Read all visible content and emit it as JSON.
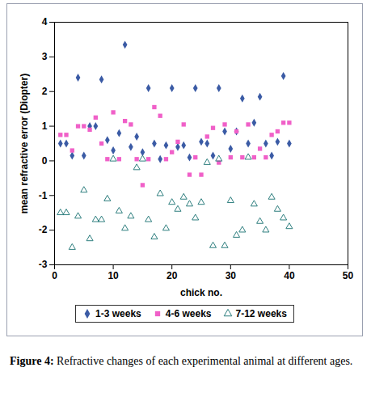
{
  "chart_data": {
    "type": "scatter",
    "title": "Figure 4: Refractive changes of each experimental animal at different ages.",
    "x_label": "chick no.",
    "y_label": "mean refractive error (Diopter)",
    "x": [
      1,
      2,
      3,
      4,
      5,
      6,
      7,
      8,
      9,
      10,
      11,
      12,
      13,
      14,
      15,
      16,
      17,
      18,
      19,
      20,
      21,
      22,
      23,
      24,
      25,
      26,
      27,
      28,
      29,
      30,
      31,
      32,
      33,
      34,
      35,
      36,
      37,
      38,
      39,
      40
    ],
    "series": [
      {
        "name": "1-3 weeks",
        "color": "#3b5ba5",
        "marker": "diamond",
        "values": [
          0.5,
          0.5,
          0.15,
          2.4,
          0.15,
          1.0,
          1.0,
          2.35,
          0.6,
          0.3,
          0.8,
          3.35,
          0.4,
          0.7,
          0.25,
          2.1,
          0.5,
          0.05,
          0.45,
          2.1,
          0.4,
          0.45,
          0.1,
          2.1,
          0.55,
          0.5,
          0.15,
          2.1,
          0.85,
          0.35,
          0.85,
          1.8,
          0.5,
          1.1,
          1.85,
          0.5,
          0.15,
          0.55,
          2.45,
          0.5
        ]
      },
      {
        "name": "4-6 weeks",
        "color": "#f060c8",
        "marker": "square",
        "values": [
          0.75,
          0.75,
          0.3,
          1.0,
          1.0,
          0.9,
          1.25,
          0.5,
          0.05,
          1.4,
          0.05,
          1.15,
          1.05,
          0.05,
          -0.7,
          0.05,
          1.55,
          1.3,
          0.05,
          0.25,
          0.55,
          1.05,
          -0.4,
          0.1,
          -0.4,
          0.7,
          0.95,
          -0.05,
          1.05,
          0.1,
          0.85,
          0.1,
          1.05,
          0.1,
          0.35,
          0.1,
          0.75,
          0.85,
          1.1,
          1.1
        ]
      },
      {
        "name": "7-12 weeks",
        "color": "#2f7f7f",
        "marker": "triangle-open",
        "values": [
          -1.5,
          -1.5,
          -2.5,
          -1.6,
          -0.85,
          -2.25,
          -1.7,
          -1.7,
          -1.1,
          0.05,
          -1.45,
          -1.95,
          -1.6,
          -0.2,
          0.05,
          -1.7,
          -2.2,
          -0.95,
          -1.95,
          -1.2,
          -1.4,
          -1.05,
          -1.25,
          -1.65,
          -1.2,
          -0.05,
          -2.45,
          0.05,
          -2.45,
          -1.15,
          -2.15,
          -2.0,
          0.1,
          -1.25,
          -1.75,
          -2.0,
          -1.05,
          -1.4,
          -1.65,
          -1.9
        ]
      }
    ],
    "xlim": [
      0,
      50
    ],
    "xticks": [
      0,
      10,
      20,
      30,
      40,
      50
    ],
    "ylim": [
      -3,
      4
    ],
    "yticks": [
      -3,
      -2,
      -1,
      0,
      1,
      2,
      3,
      4
    ],
    "grid": false,
    "legend": "bottom"
  }
}
